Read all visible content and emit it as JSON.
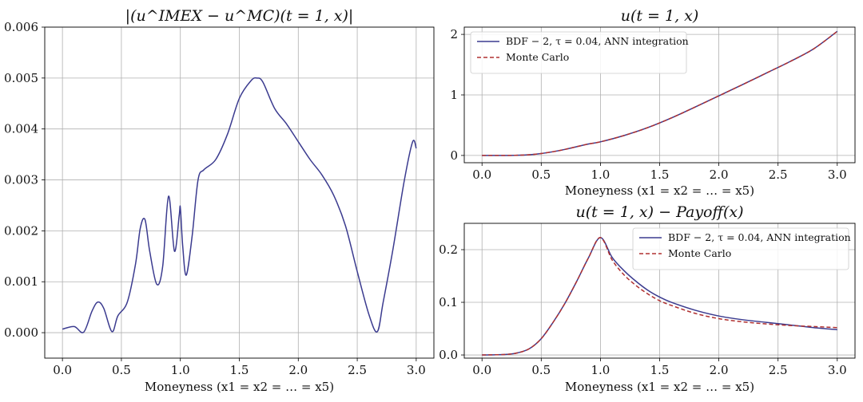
{
  "chart_data": [
    {
      "type": "line",
      "title": "|(u^IMEX − u^MC)(t = 1, x)|",
      "xlabel": "Moneyness (x1 = x2 = … = x5)",
      "ylabel": "",
      "xlim": [
        -0.15,
        3.15
      ],
      "ylim": [
        -0.0005,
        0.006
      ],
      "xticks": [
        "0.0",
        "0.5",
        "1.0",
        "1.5",
        "2.0",
        "2.5",
        "3.0"
      ],
      "yticks": [
        "0.000",
        "0.001",
        "0.002",
        "0.003",
        "0.004",
        "0.005",
        "0.006"
      ],
      "grid": true,
      "legend": null,
      "series": [
        {
          "color": "#3b3b8f",
          "style": "solid",
          "x": [
            0.0,
            0.1,
            0.18,
            0.25,
            0.3,
            0.35,
            0.42,
            0.47,
            0.55,
            0.62,
            0.66,
            0.7,
            0.74,
            0.8,
            0.85,
            0.9,
            0.95,
            0.99,
            1.0,
            1.02,
            1.05,
            1.1,
            1.15,
            1.2,
            1.3,
            1.4,
            1.5,
            1.6,
            1.65,
            1.7,
            1.8,
            1.9,
            2.0,
            2.1,
            2.2,
            2.3,
            2.4,
            2.5,
            2.6,
            2.67,
            2.72,
            2.8,
            2.9,
            2.97,
            3.0
          ],
          "y": [
            7e-05,
            0.00012,
            1e-05,
            0.00042,
            0.0006,
            0.00048,
            2e-05,
            0.00033,
            0.0006,
            0.00135,
            0.00205,
            0.00222,
            0.0016,
            0.00095,
            0.0013,
            0.00268,
            0.0016,
            0.0023,
            0.00245,
            0.0017,
            0.00113,
            0.0019,
            0.003,
            0.0032,
            0.0034,
            0.0039,
            0.0046,
            0.00495,
            0.005,
            0.00492,
            0.0044,
            0.0041,
            0.00375,
            0.0034,
            0.0031,
            0.0027,
            0.0021,
            0.0012,
            0.00035,
            2e-05,
            0.0006,
            0.0016,
            0.003,
            0.00375,
            0.00362
          ]
        }
      ]
    },
    {
      "type": "line",
      "title": "u(t = 1, x)",
      "xlabel": "Moneyness (x1 = x2 = … = x5)",
      "ylabel": "",
      "xlim": [
        -0.15,
        3.15
      ],
      "ylim": [
        -0.12,
        2.12
      ],
      "xticks": [
        "0.0",
        "0.5",
        "1.0",
        "1.5",
        "2.0",
        "2.5",
        "3.0"
      ],
      "yticks": [
        "0",
        "1",
        "2"
      ],
      "grid": true,
      "legend": "top-left",
      "series": [
        {
          "name": "BDF − 2, τ = 0.04, ANN integration",
          "color": "#3b3b8f",
          "style": "solid",
          "x": [
            0.0,
            0.2,
            0.3,
            0.4,
            0.5,
            0.6,
            0.7,
            0.8,
            0.9,
            1.0,
            1.2,
            1.4,
            1.6,
            1.8,
            2.0,
            2.2,
            2.4,
            2.6,
            2.8,
            3.0
          ],
          "y": [
            0.0,
            0.0,
            0.003,
            0.012,
            0.032,
            0.062,
            0.1,
            0.145,
            0.19,
            0.225,
            0.33,
            0.46,
            0.62,
            0.8,
            0.985,
            1.17,
            1.36,
            1.55,
            1.76,
            2.05
          ]
        },
        {
          "name": "Monte Carlo",
          "color": "#b03030",
          "style": "dashed",
          "x": [
            0.0,
            0.2,
            0.3,
            0.4,
            0.5,
            0.6,
            0.7,
            0.8,
            0.9,
            1.0,
            1.2,
            1.4,
            1.6,
            1.8,
            2.0,
            2.2,
            2.4,
            2.6,
            2.8,
            3.0
          ],
          "y": [
            0.0,
            0.0,
            0.003,
            0.012,
            0.032,
            0.062,
            0.1,
            0.145,
            0.19,
            0.225,
            0.33,
            0.46,
            0.62,
            0.8,
            0.985,
            1.17,
            1.36,
            1.55,
            1.76,
            2.05
          ]
        }
      ]
    },
    {
      "type": "line",
      "title": "u(t = 1, x) − Payoff(x)",
      "xlabel": "Moneyness (x1 = x2 = … = x5)",
      "ylabel": "",
      "xlim": [
        -0.15,
        3.15
      ],
      "ylim": [
        -0.006,
        0.25
      ],
      "xticks": [
        "0.0",
        "0.5",
        "1.0",
        "1.5",
        "2.0",
        "2.5",
        "3.0"
      ],
      "yticks": [
        "0.0",
        "0.1",
        "0.2"
      ],
      "grid": true,
      "legend": "top-right",
      "series": [
        {
          "name": "BDF − 2, τ = 0.04, ANN integration",
          "color": "#3b3b8f",
          "style": "solid",
          "x": [
            0.0,
            0.2,
            0.3,
            0.4,
            0.5,
            0.6,
            0.7,
            0.8,
            0.9,
            1.0,
            1.1,
            1.2,
            1.3,
            1.4,
            1.5,
            1.6,
            1.8,
            2.0,
            2.2,
            2.4,
            2.6,
            2.8,
            3.0
          ],
          "y": [
            0.0,
            0.001,
            0.004,
            0.012,
            0.031,
            0.062,
            0.098,
            0.14,
            0.185,
            0.223,
            0.185,
            0.16,
            0.14,
            0.123,
            0.11,
            0.1,
            0.085,
            0.074,
            0.067,
            0.062,
            0.057,
            0.052,
            0.048
          ]
        },
        {
          "name": "Monte Carlo",
          "color": "#b03030",
          "style": "dashed",
          "x": [
            0.0,
            0.2,
            0.3,
            0.4,
            0.5,
            0.6,
            0.7,
            0.8,
            0.9,
            1.0,
            1.1,
            1.2,
            1.3,
            1.4,
            1.5,
            1.6,
            1.8,
            2.0,
            2.2,
            2.4,
            2.6,
            2.8,
            3.0
          ],
          "y": [
            0.0,
            0.001,
            0.004,
            0.012,
            0.031,
            0.062,
            0.098,
            0.14,
            0.185,
            0.223,
            0.18,
            0.152,
            0.132,
            0.116,
            0.103,
            0.094,
            0.079,
            0.069,
            0.063,
            0.059,
            0.056,
            0.054,
            0.052
          ]
        }
      ]
    }
  ]
}
